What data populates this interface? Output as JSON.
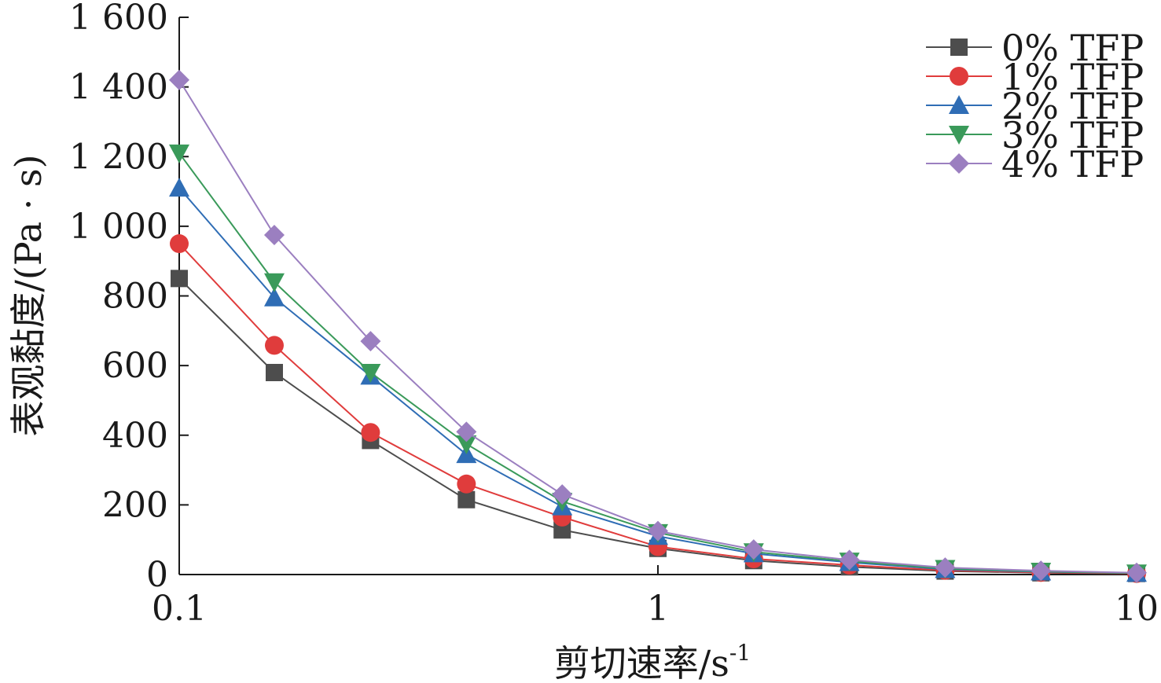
{
  "chart_data": {
    "type": "line",
    "title": "",
    "xlabel": "剪切速率/s",
    "xlabel_sup": "-1",
    "ylabel": "表观黏度/(Pa · s)",
    "x_scale": "log",
    "xlim": [
      0.1,
      10
    ],
    "ylim": [
      0,
      1600
    ],
    "x_ticks": [
      0.1,
      1,
      10
    ],
    "x_tick_labels": [
      "0.1",
      "1",
      "10"
    ],
    "y_ticks": [
      0,
      200,
      400,
      600,
      800,
      1000,
      1200,
      1400,
      1600
    ],
    "y_tick_labels": [
      "0",
      "200",
      "400",
      "600",
      "800",
      "1 000",
      "1 200",
      "1 400",
      "1 600"
    ],
    "grid": false,
    "legend_position": "top-right",
    "x": [
      0.1,
      0.158,
      0.251,
      0.398,
      0.631,
      1,
      1.585,
      2.512,
      3.981,
      6.31,
      10
    ],
    "series": [
      {
        "name": "0% TFP",
        "color": "#4d4d4d",
        "marker": "square",
        "values": [
          850,
          580,
          385,
          215,
          128,
          75,
          40,
          22,
          10,
          5,
          3
        ]
      },
      {
        "name": "1% TFP",
        "color": "#e03c3c",
        "marker": "circle",
        "values": [
          950,
          658,
          408,
          260,
          165,
          80,
          45,
          27,
          12,
          6,
          3
        ]
      },
      {
        "name": "2% TFP",
        "color": "#2f6db5",
        "marker": "triangle-up",
        "values": [
          1110,
          795,
          570,
          345,
          195,
          110,
          60,
          35,
          15,
          8,
          4
        ]
      },
      {
        "name": "3% TFP",
        "color": "#3a9a5a",
        "marker": "triangle-down",
        "values": [
          1210,
          840,
          580,
          375,
          210,
          120,
          65,
          38,
          17,
          9,
          4
        ]
      },
      {
        "name": "4% TFP",
        "color": "#9b7fc0",
        "marker": "diamond",
        "values": [
          1420,
          975,
          670,
          410,
          230,
          125,
          72,
          42,
          20,
          11,
          5
        ]
      }
    ]
  }
}
